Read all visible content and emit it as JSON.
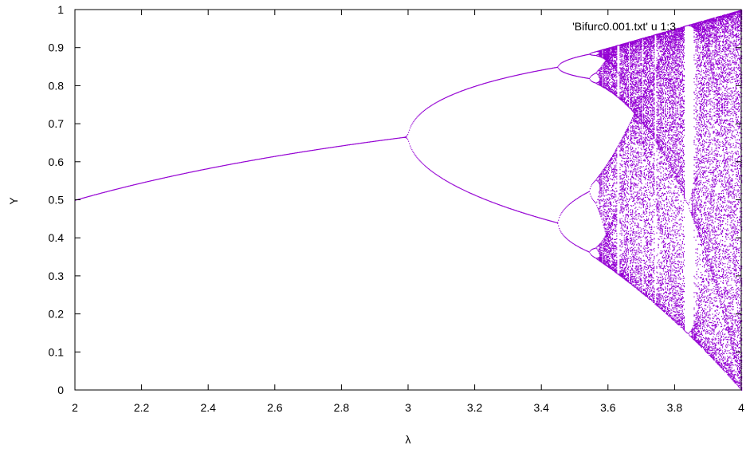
{
  "chart_data": {
    "type": "scatter",
    "title": "",
    "xlabel": "λ",
    "ylabel": "Y",
    "xlim": [
      2,
      4
    ],
    "ylim": [
      0,
      1
    ],
    "xticks": [
      "2",
      "2.2",
      "2.4",
      "2.6",
      "2.8",
      "3",
      "3.2",
      "3.4",
      "3.6",
      "3.8",
      "4"
    ],
    "yticks": [
      "0",
      "0.1",
      "0.2",
      "0.3",
      "0.4",
      "0.5",
      "0.6",
      "0.7",
      "0.8",
      "0.9",
      "1"
    ],
    "grid": false,
    "legend_position": "top-right",
    "series": [
      {
        "name": "'Bifurc0.001.txt' u 1:3",
        "color": "#9400d3",
        "description_points": {
          "lambda_start": 2.0,
          "lambda_end": 4.0,
          "lambda_step": 0.001
        }
      }
    ]
  }
}
